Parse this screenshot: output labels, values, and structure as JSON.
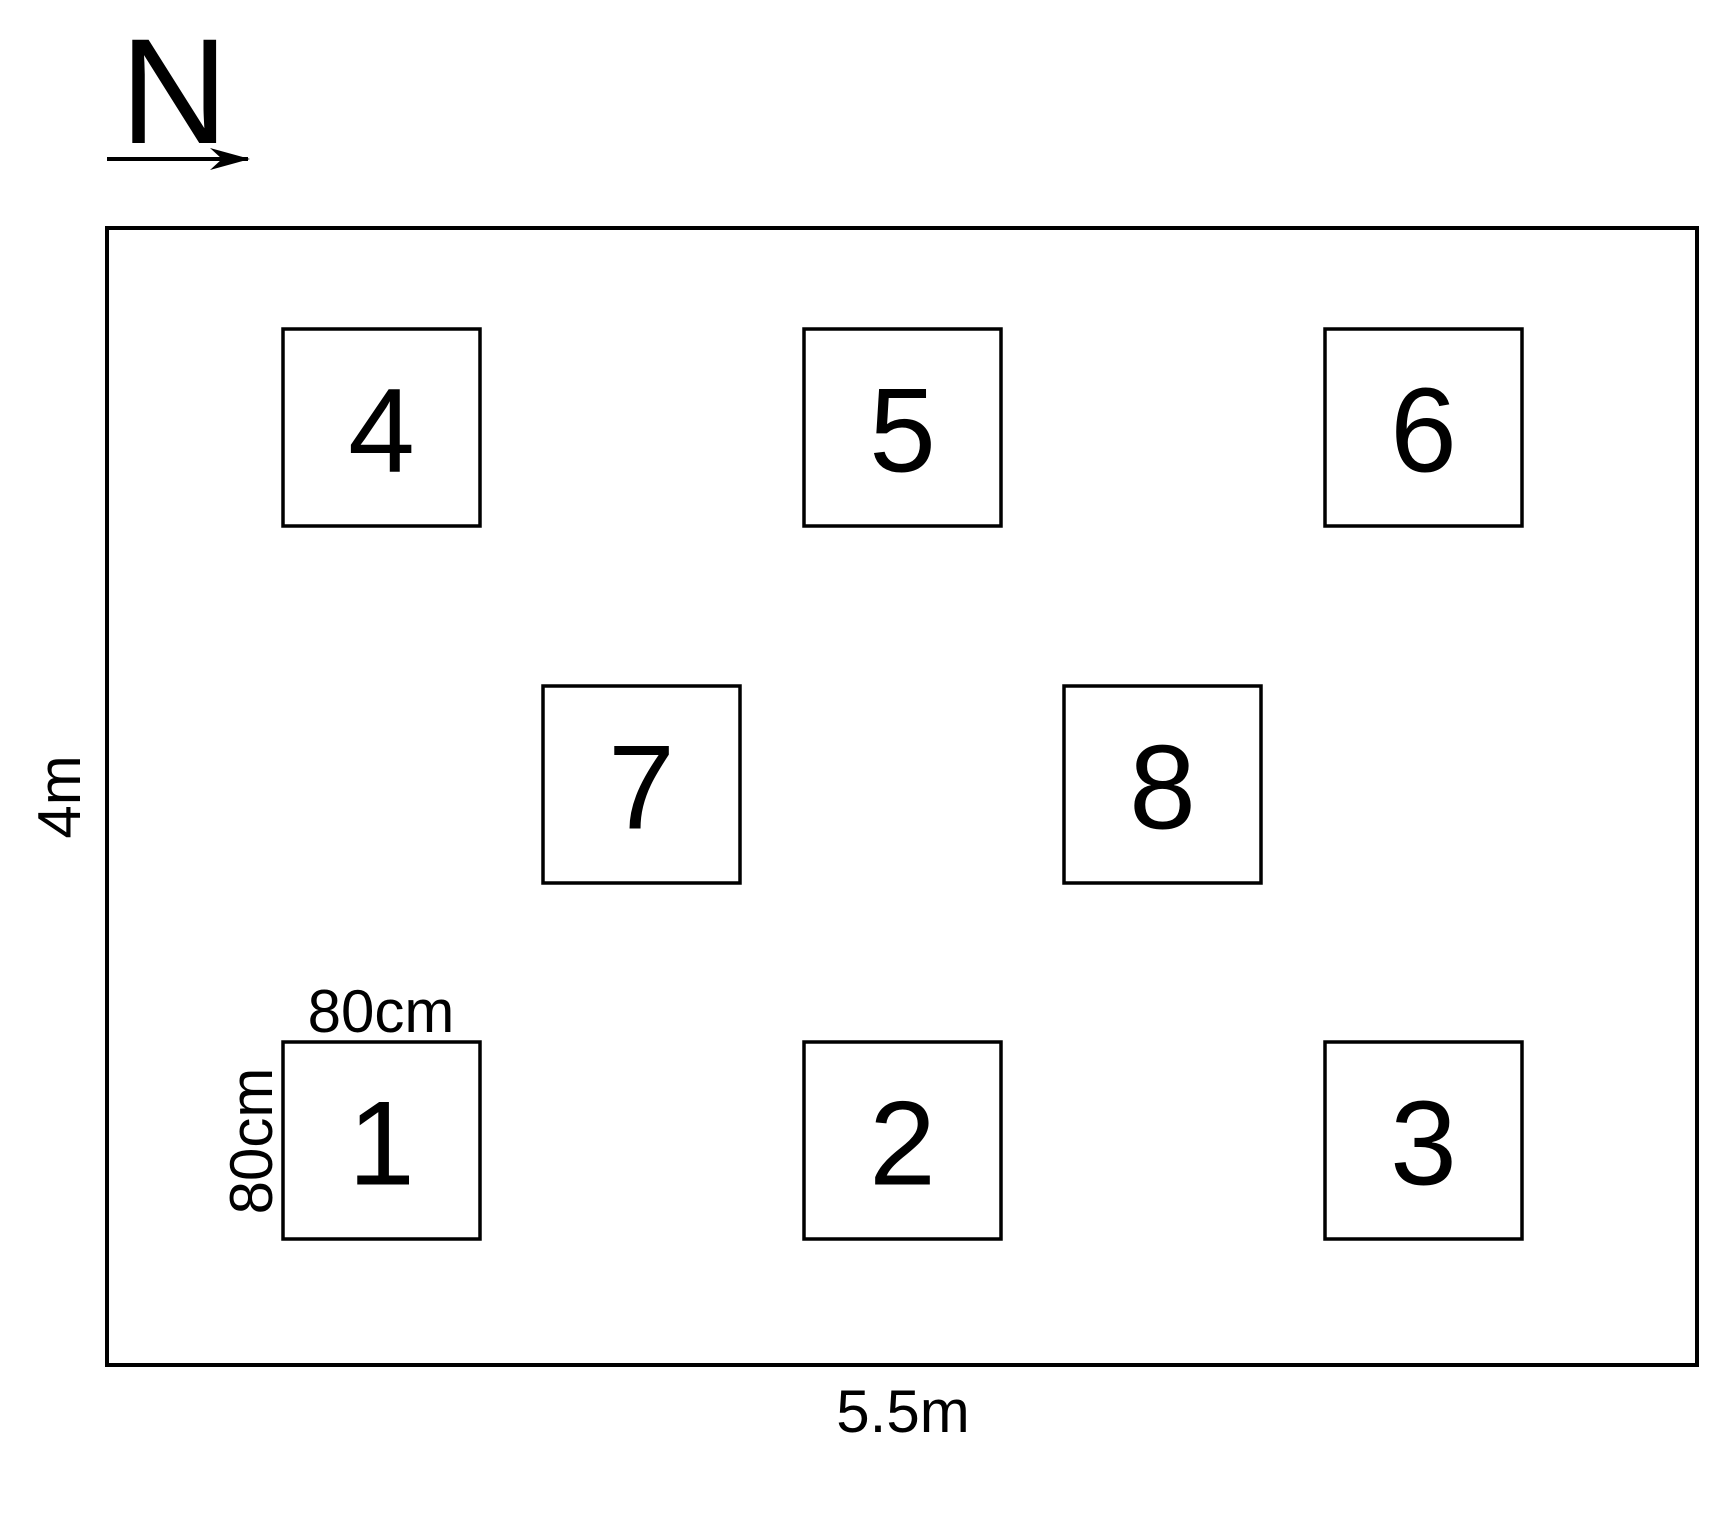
{
  "north": {
    "label": "N",
    "arrow_icon": "arrow-right-icon"
  },
  "field": {
    "width_label": "5.5m",
    "height_label": "4m"
  },
  "plot_size": {
    "width_label": "80cm",
    "height_label": "80cm"
  },
  "plots": [
    {
      "id": "1",
      "label": "1"
    },
    {
      "id": "2",
      "label": "2"
    },
    {
      "id": "3",
      "label": "3"
    },
    {
      "id": "4",
      "label": "4"
    },
    {
      "id": "5",
      "label": "5"
    },
    {
      "id": "6",
      "label": "6"
    },
    {
      "id": "7",
      "label": "7"
    },
    {
      "id": "8",
      "label": "8"
    }
  ],
  "colors": {
    "stroke": "#000000",
    "background": "#ffffff"
  }
}
